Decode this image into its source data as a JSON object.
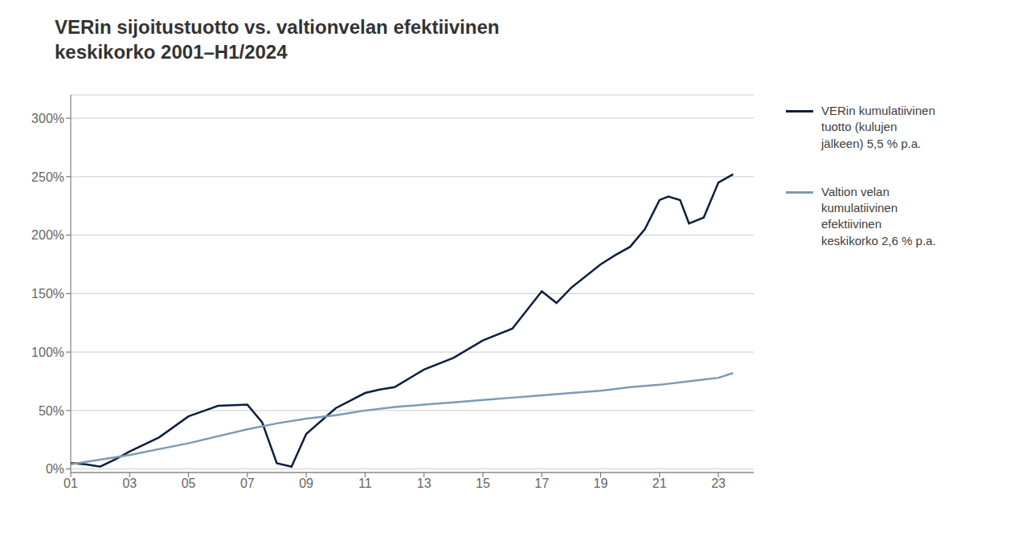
{
  "chart_data": {
    "type": "line",
    "title": "VERin sijoitustuotto vs. valtionvelan efektiivinen\nkeskikorko 2001–H1/2024",
    "series": [
      {
        "name": "VERin kumulatiivinen\ntuotto (kulujen\njälkeen) 5,5 % p.a.",
        "color": "#0d1f3c",
        "x": [
          2001,
          2001.5,
          2002,
          2002.5,
          2003,
          2004,
          2005,
          2006,
          2007,
          2007.5,
          2008,
          2008.5,
          2009,
          2010,
          2011,
          2011.5,
          2012,
          2013,
          2014,
          2015,
          2016,
          2017,
          2017.5,
          2018,
          2019,
          2019.5,
          2020,
          2020.5,
          2021,
          2021.3,
          2021.7,
          2022,
          2022.5,
          2023,
          2023.5
        ],
        "values": [
          0.05,
          0.04,
          0.02,
          0.08,
          0.15,
          0.27,
          0.45,
          0.54,
          0.55,
          0.4,
          0.05,
          0.02,
          0.3,
          0.52,
          0.65,
          0.68,
          0.7,
          0.85,
          0.95,
          1.1,
          1.2,
          1.52,
          1.42,
          1.55,
          1.75,
          1.83,
          1.9,
          2.05,
          2.3,
          2.33,
          2.3,
          2.1,
          2.15,
          2.45,
          2.52
        ]
      },
      {
        "name": "Valtion velan\nkumulatiivinen\nefektiivinen\nkeskikorko 2,6 % p.a.",
        "color": "#7a9bb5",
        "x": [
          2001,
          2002,
          2003,
          2004,
          2005,
          2006,
          2007,
          2008,
          2009,
          2010,
          2011,
          2012,
          2013,
          2014,
          2015,
          2016,
          2017,
          2018,
          2019,
          2020,
          2021,
          2022,
          2023,
          2023.5
        ],
        "values": [
          0.04,
          0.08,
          0.12,
          0.17,
          0.22,
          0.28,
          0.34,
          0.39,
          0.43,
          0.46,
          0.5,
          0.53,
          0.55,
          0.57,
          0.59,
          0.61,
          0.63,
          0.65,
          0.67,
          0.7,
          0.72,
          0.75,
          0.78,
          0.82
        ]
      }
    ],
    "xlim": [
      2001,
      2024.2
    ],
    "xticks": [
      {
        "value": 2001,
        "label": "01"
      },
      {
        "value": 2003,
        "label": "03"
      },
      {
        "value": 2005,
        "label": "05"
      },
      {
        "value": 2007,
        "label": "07"
      },
      {
        "value": 2009,
        "label": "09"
      },
      {
        "value": 2011,
        "label": "11"
      },
      {
        "value": 2013,
        "label": "13"
      },
      {
        "value": 2015,
        "label": "15"
      },
      {
        "value": 2017,
        "label": "17"
      },
      {
        "value": 2019,
        "label": "19"
      },
      {
        "value": 2021,
        "label": "21"
      },
      {
        "value": 2023,
        "label": "23"
      }
    ],
    "ylim": [
      -0.03,
      3.2
    ],
    "yticks": [
      {
        "value": 0.0,
        "label": "0%"
      },
      {
        "value": 0.5,
        "label": "50%"
      },
      {
        "value": 1.0,
        "label": "100%"
      },
      {
        "value": 1.5,
        "label": "150%"
      },
      {
        "value": 2.0,
        "label": "200%"
      },
      {
        "value": 2.5,
        "label": "250%"
      },
      {
        "value": 3.0,
        "label": "300%"
      }
    ],
    "grid": true,
    "legend": "right"
  }
}
